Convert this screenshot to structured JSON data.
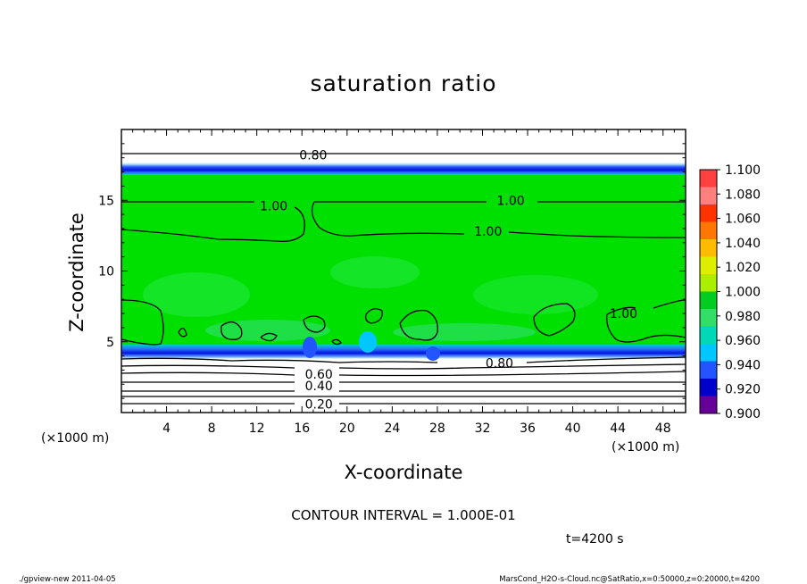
{
  "chart_data": {
    "type": "heatmap",
    "title": "saturation ratio",
    "xlabel": "X-coordinate",
    "ylabel": "Z-coordinate",
    "x_unit_left": "(×1000 m)",
    "x_unit_right": "(×1000 m)",
    "xlim": [
      0,
      50
    ],
    "ylim": [
      0,
      20
    ],
    "x_ticks": [
      4,
      8,
      12,
      16,
      20,
      24,
      28,
      32,
      36,
      40,
      44,
      48
    ],
    "y_ticks": [
      5,
      10,
      15
    ],
    "colorbar": {
      "levels": [
        "1.100",
        "1.080",
        "1.060",
        "1.040",
        "1.020",
        "1.000",
        "0.980",
        "0.960",
        "0.940",
        "0.920",
        "0.900"
      ],
      "colors": [
        "#ff4040",
        "#ff7f7f",
        "#ff3300",
        "#ff7700",
        "#ffbb00",
        "#ddee00",
        "#aaee00",
        "#00cc22",
        "#33dd66",
        "#00d8b8",
        "#00c8ff",
        "#2255ff",
        "#0000cc",
        "#660099"
      ]
    },
    "fields": {
      "background": "#00e000",
      "upper_blue_band": [
        17.0,
        17.6
      ],
      "lower_blue_band": [
        3.8,
        4.6
      ],
      "dry_below": "#ffffff"
    },
    "contour_labels": [
      {
        "text": "0.80",
        "x": 17,
        "y": 18.2
      },
      {
        "text": "1.00",
        "x": 13.5,
        "y": 14.6
      },
      {
        "text": "1.00",
        "x": 34.5,
        "y": 15.0
      },
      {
        "text": "1.00",
        "x": 32.5,
        "y": 12.8
      },
      {
        "text": "1.00",
        "x": 44.5,
        "y": 7.0
      },
      {
        "text": "0.80",
        "x": 33.5,
        "y": 3.5
      },
      {
        "text": "0.60",
        "x": 17.5,
        "y": 2.7
      },
      {
        "text": "0.40",
        "x": 17.5,
        "y": 1.9
      },
      {
        "text": "0.20",
        "x": 17.5,
        "y": 0.6
      }
    ],
    "grid": false
  },
  "annotations": {
    "contour_interval": "CONTOUR INTERVAL = 1.000E-01",
    "time": "t=4200 s",
    "footer_left": "./gpview-new  2011-04-05",
    "footer_right": "MarsCond_H2O-s-Cloud.nc@SatRatio,x=0:50000,z=0:20000,t=4200"
  }
}
